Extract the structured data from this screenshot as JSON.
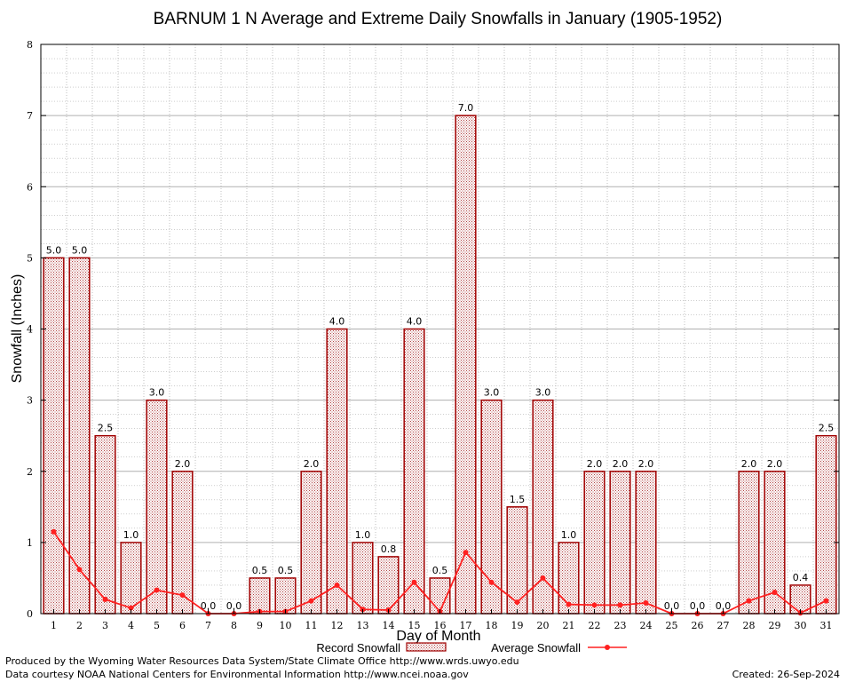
{
  "colors": {
    "bar_fill": "#c8a0a0",
    "bar_stroke": "#a00000",
    "line": "#ff2020",
    "grid": "#b0b0b0",
    "background": "#ffffff"
  },
  "legend": {
    "record_label": "Record Snowfall",
    "average_label": "Average Snowfall"
  },
  "footer": {
    "line1": "Produced by the Wyoming Water Resources Data System/State Climate Office http://www.wrds.uwyo.edu",
    "line2": "Data courtesy NOAA National Centers for Environmental Information http://www.ncei.noaa.gov",
    "created": "Created: 26-Sep-2024"
  },
  "chart_data": {
    "type": "bar",
    "title": "BARNUM 1 N Average and Extreme Daily Snowfalls in January (1905-1952)",
    "xlabel": "Day of Month",
    "ylabel": "Snowfall (Inches)",
    "ylim": [
      0,
      8
    ],
    "yticks": [
      "0",
      "1",
      "2",
      "3",
      "4",
      "5",
      "6",
      "7",
      "8"
    ],
    "categories": [
      "1",
      "2",
      "3",
      "4",
      "5",
      "6",
      "7",
      "8",
      "9",
      "10",
      "11",
      "12",
      "13",
      "14",
      "15",
      "16",
      "17",
      "18",
      "19",
      "20",
      "21",
      "22",
      "23",
      "24",
      "25",
      "26",
      "27",
      "28",
      "29",
      "30",
      "31"
    ],
    "series": [
      {
        "name": "Record Snowfall",
        "kind": "bar",
        "values": [
          5.0,
          5.0,
          2.5,
          1.0,
          3.0,
          2.0,
          0.0,
          0.0,
          0.5,
          0.5,
          2.0,
          4.0,
          1.0,
          0.8,
          4.0,
          0.5,
          7.0,
          3.0,
          1.5,
          3.0,
          1.0,
          2.0,
          2.0,
          2.0,
          0.0,
          0.0,
          0.0,
          2.0,
          2.0,
          0.4,
          2.5
        ],
        "labels": [
          "5.0",
          "5.0",
          "2.5",
          "1.0",
          "3.0",
          "2.0",
          "0.0",
          "0.0",
          "0.5",
          "0.5",
          "2.0",
          "4.0",
          "1.0",
          "0.8",
          "4.0",
          "0.5",
          "7.0",
          "3.0",
          "1.5",
          "3.0",
          "1.0",
          "2.0",
          "2.0",
          "2.0",
          "0.0",
          "0.0",
          "0.0",
          "2.0",
          "2.0",
          "0.4",
          "2.5"
        ]
      },
      {
        "name": "Average Snowfall",
        "kind": "line",
        "values": [
          1.15,
          0.62,
          0.2,
          0.08,
          0.33,
          0.26,
          0.0,
          0.0,
          0.03,
          0.03,
          0.18,
          0.4,
          0.06,
          0.05,
          0.44,
          0.03,
          0.86,
          0.44,
          0.16,
          0.5,
          0.13,
          0.12,
          0.12,
          0.15,
          0.0,
          0.0,
          0.0,
          0.18,
          0.3,
          0.01,
          0.18
        ]
      }
    ],
    "grid": true,
    "legend_position": "bottom-center"
  }
}
